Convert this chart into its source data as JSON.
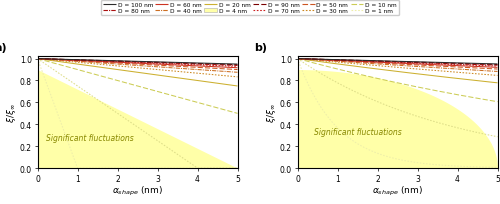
{
  "D_values": [
    100,
    90,
    80,
    70,
    60,
    50,
    40,
    30,
    20,
    10,
    4,
    1
  ],
  "alpha_max": 5.0,
  "colors_by_D": {
    "100": "#2b2b2b",
    "90": "#7a0000",
    "80": "#aa1010",
    "70": "#cc2222",
    "60": "#cc3322",
    "50": "#cc5522",
    "40": "#cc6e22",
    "30": "#cc8822",
    "20": "#ccb030",
    "10": "#cccc55",
    "4": "#dddd88",
    "1": "#eeeeaa"
  },
  "linestyles_by_D": {
    "100": "solid",
    "90": "dashed",
    "80": "dashdot",
    "70": "dotted",
    "60": "solid",
    "50": "dashed",
    "40": "dashdot",
    "30": "dotted",
    "20": "solid",
    "10": "dashed",
    "4": "dotted",
    "1": "dotted"
  },
  "ylabel": "$\\xi/\\xi_{\\infty}$",
  "xlabel": "$\\alpha_{shape}$ (nm)",
  "fluctuation_text": "Significant fluctuations",
  "fluctuation_color": "#ffffa8",
  "ylim": [
    0,
    1.02
  ],
  "xlim": [
    0,
    5
  ],
  "yticks": [
    0.0,
    0.2,
    0.4,
    0.6,
    0.8,
    1.0
  ],
  "xticks": [
    0,
    1,
    2,
    3,
    4,
    5
  ]
}
